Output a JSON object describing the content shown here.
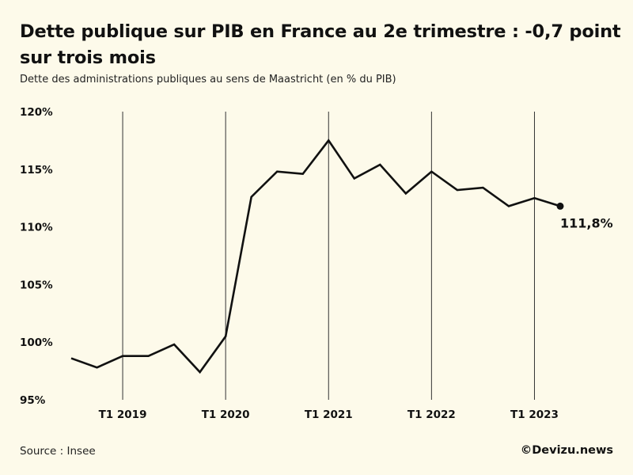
{
  "header": {
    "title": "Dette publique sur PIB en France au 2e trimestre : -0,7 point sur trois mois",
    "subtitle": "Dette des administrations publiques au sens de Maastricht (en % du PIB)"
  },
  "footer": {
    "source": "Source : Insee",
    "credit": "©Devizu.news"
  },
  "chart_data": {
    "type": "line",
    "title": "Dette publique sur PIB en France au 2e trimestre : -0,7 point sur trois mois",
    "subtitle": "Dette des administrations publiques au sens de Maastricht (en % du PIB)",
    "ylim": [
      95,
      120
    ],
    "y_ticks": [
      95,
      100,
      105,
      110,
      115,
      120
    ],
    "y_tick_labels": [
      "95%",
      "100%",
      "105%",
      "110%",
      "115%",
      "120%"
    ],
    "x_tick_labels": [
      "T1 2019",
      "T1 2020",
      "T1 2021",
      "T1 2022",
      "T1 2023"
    ],
    "x_tick_index": [
      2,
      6,
      10,
      14,
      18
    ],
    "vertical_gridlines": true,
    "series": [
      {
        "x": [
          "T3 2018",
          "T4 2018",
          "T1 2019",
          "T2 2019",
          "T3 2019",
          "T4 2019",
          "T1 2020",
          "T2 2020",
          "T3 2020",
          "T4 2020",
          "T1 2021",
          "T2 2021",
          "T3 2021",
          "T4 2021",
          "T1 2022",
          "T2 2022",
          "T3 2022",
          "T4 2022",
          "T1 2023",
          "T2 2023"
        ],
        "values": [
          98.6,
          97.8,
          98.8,
          98.8,
          99.8,
          97.4,
          100.5,
          112.6,
          114.8,
          114.6,
          117.5,
          114.2,
          115.4,
          112.9,
          114.8,
          113.2,
          113.4,
          111.8,
          112.5,
          111.8
        ],
        "color": "#111111"
      }
    ],
    "end_label": "111,8%"
  }
}
